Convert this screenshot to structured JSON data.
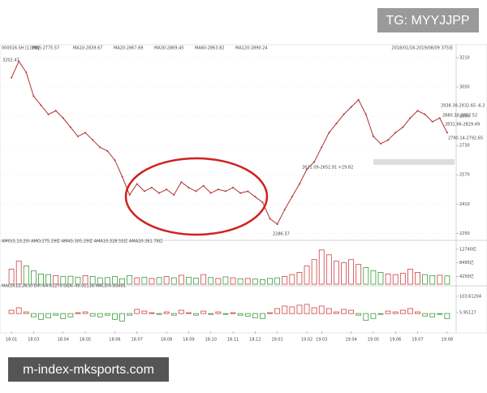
{
  "watermarks": [
    "TG: MYYJJPP",
    "m-index-mksports.com"
  ],
  "chart_data": [
    {
      "type": "line",
      "title": "000016.SH [1日线]",
      "date_range": "2018/01/18-2019/08/09 375日",
      "color": "#b03030",
      "legend_items": [
        {
          "text": "MA5:2775.57",
          "color": "#d04040"
        },
        {
          "text": "MA10:2839.67",
          "color": "#c060c0"
        },
        {
          "text": "MA20:2867.69",
          "color": "#4060c0"
        },
        {
          "text": "MA30:2869.45",
          "color": "#40a0a0"
        },
        {
          "text": "MA60:2863.82",
          "color": "#60b060"
        },
        {
          "text": "MA120:2890.24",
          "color": "#a040a0"
        }
      ],
      "annotations": [
        "3202.47",
        "2286.37",
        "2938.30-2932.65 -6.2",
        "2880.30-2852.52",
        "2831.66-2829.49",
        "2790.14-2792.65",
        "2621.09-2652.91 +29.82"
      ],
      "xlim": [
        -1,
        60
      ],
      "ylim": [
        2225,
        3250
      ],
      "yticks": [
        3210,
        3050,
        2890,
        2730,
        2570,
        2410,
        2250
      ],
      "grid": true,
      "values": [
        3100,
        3190,
        3130,
        3000,
        2950,
        2900,
        2920,
        2880,
        2830,
        2780,
        2800,
        2760,
        2720,
        2700,
        2650,
        2560,
        2460,
        2520,
        2480,
        2500,
        2470,
        2490,
        2460,
        2530,
        2500,
        2480,
        2510,
        2470,
        2490,
        2480,
        2500,
        2470,
        2480,
        2450,
        2420,
        2330,
        2300,
        2380,
        2450,
        2520,
        2600,
        2640,
        2720,
        2800,
        2850,
        2900,
        2940,
        2980,
        2900,
        2780,
        2740,
        2760,
        2800,
        2830,
        2880,
        2920,
        2900,
        2860,
        2880,
        2800
      ]
    },
    {
      "type": "bar",
      "title": "AMO(5,10,20) AMO:275.29亿 AMA5:305.29亿 AMA10:328.55亿 AMA20:361.78亿",
      "up_color": "#d04040",
      "down_color": "#3a9a3a",
      "ylim": [
        1800,
        14500
      ],
      "yticks": [
        {
          "value": 12740,
          "label": "12740亿"
        },
        {
          "value": 8495,
          "label": "8495亿"
        },
        {
          "value": 4250,
          "label": "4250亿"
        }
      ],
      "values": [
        6500,
        9000,
        7500,
        6000,
        5000,
        4800,
        4500,
        4200,
        4300,
        4000,
        4500,
        4200,
        3800,
        3900,
        4200,
        3500,
        4500,
        3800,
        4000,
        3600,
        3900,
        4200,
        3800,
        4600,
        4000,
        3700,
        4800,
        3900,
        3600,
        4100,
        3800,
        3500,
        3600,
        3400,
        3200,
        3600,
        3800,
        4200,
        4800,
        5500,
        7500,
        9500,
        12500,
        11000,
        9000,
        8500,
        9500,
        8000,
        7000,
        6000,
        5500,
        5000,
        4800,
        5200,
        6500,
        5500,
        4800,
        4500,
        4600,
        4400
      ]
    },
    {
      "type": "bar",
      "title": "MACD(12,26,9) DIF:-64.61270 DEA:-45.01116 MACD:0.83601",
      "up_color": "#d04040",
      "down_color": "#3a9a3a",
      "ylim": [
        -92,
        152
      ],
      "yticks": [
        103.61204,
        5.95127
      ],
      "xticks": [
        {
          "value": 0,
          "label": "18.01"
        },
        {
          "value": 3,
          "label": "18.03"
        },
        {
          "value": 7,
          "label": "18.04"
        },
        {
          "value": 10,
          "label": "18.05"
        },
        {
          "value": 14,
          "label": "18.06"
        },
        {
          "value": 17,
          "label": "18.07"
        },
        {
          "value": 21,
          "label": "18.08"
        },
        {
          "value": 24,
          "label": "18.09"
        },
        {
          "value": 27,
          "label": "18.10"
        },
        {
          "value": 30,
          "label": "18.11"
        },
        {
          "value": 33,
          "label": "18.12"
        },
        {
          "value": 36,
          "label": "19.01"
        },
        {
          "value": 40,
          "label": "19.02"
        },
        {
          "value": 42,
          "label": "19.03"
        },
        {
          "value": 46,
          "label": "19.04"
        },
        {
          "value": 49,
          "label": "19.05"
        },
        {
          "value": 52,
          "label": "19.06"
        },
        {
          "value": 55,
          "label": "19.07"
        },
        {
          "value": 59,
          "label": "19.08"
        }
      ],
      "values": [
        20,
        35,
        10,
        -20,
        -35,
        -25,
        -10,
        -30,
        -20,
        5,
        10,
        -15,
        -20,
        -10,
        -35,
        -45,
        -10,
        25,
        15,
        5,
        -5,
        10,
        -10,
        20,
        5,
        -10,
        15,
        -5,
        10,
        -5,
        5,
        -10,
        -15,
        -25,
        -30,
        5,
        30,
        45,
        40,
        50,
        55,
        35,
        45,
        30,
        10,
        25,
        20,
        -10,
        -40,
        -30,
        -5,
        15,
        10,
        20,
        30,
        10,
        -15,
        -20,
        -5,
        -30
      ]
    }
  ]
}
